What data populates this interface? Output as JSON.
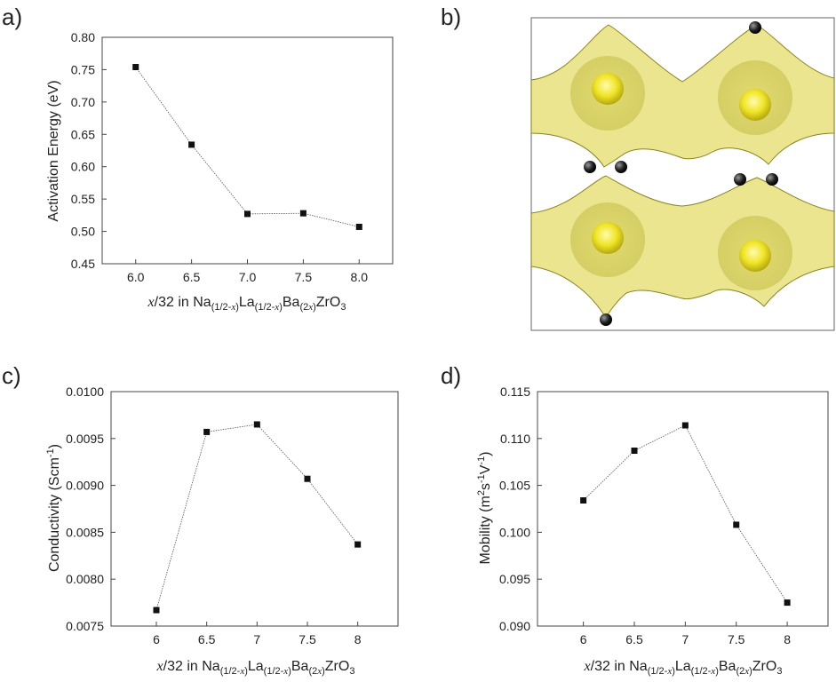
{
  "panels": [
    {
      "label": "a)"
    },
    {
      "label": "b)"
    },
    {
      "label": "c)"
    },
    {
      "label": "d)"
    }
  ],
  "xlabel_parts": {
    "var": "x",
    "frac": "/32 in Na",
    "sub1": "(1/2-",
    "subvar": "x",
    "close": ")",
    "la": "La",
    "ba": "Ba",
    "sub3": "(2",
    "zr": "ZrO",
    "o3": "3"
  },
  "chart_data": [
    {
      "type": "line",
      "panel": "a)",
      "ylabel": "Activation Energy (eV)",
      "x": [
        6.0,
        6.5,
        7.0,
        7.5,
        8.0
      ],
      "y": [
        0.754,
        0.634,
        0.527,
        0.528,
        0.507
      ],
      "xticks": [
        "6.0",
        "6.5",
        "7.0",
        "7.5",
        "8.0"
      ],
      "yticks": [
        "0.45",
        "0.50",
        "0.55",
        "0.60",
        "0.65",
        "0.70",
        "0.75",
        "0.80"
      ],
      "xlim": [
        5.7,
        8.3
      ],
      "ylim": [
        0.45,
        0.8
      ]
    },
    {
      "type": "line",
      "panel": "c)",
      "ylabel_base": "Conductivity (Scm",
      "ylabel_sup": "-1",
      "ylabel_end": ")",
      "x": [
        6,
        6.5,
        7,
        7.5,
        8
      ],
      "y": [
        0.00767,
        0.00957,
        0.00965,
        0.00907,
        0.00837
      ],
      "xticks": [
        "6",
        "6.5",
        "7",
        "7.5",
        "8"
      ],
      "yticks": [
        "0.0075",
        "0.0080",
        "0.0085",
        "0.0090",
        "0.0095",
        "0.0100"
      ],
      "xlim": [
        5.55,
        8.4
      ],
      "ylim": [
        0.0075,
        0.01
      ]
    },
    {
      "type": "line",
      "panel": "d)",
      "ylabel_base": "Mobility (m",
      "ylabel_sup1": "2",
      "ylabel_mid1": "s",
      "ylabel_sup2": "-1",
      "ylabel_mid2": "V",
      "ylabel_sup3": "-1",
      "ylabel_end": ")",
      "x": [
        6,
        6.5,
        7,
        7.5,
        8
      ],
      "y": [
        0.1034,
        0.1087,
        0.1114,
        0.1008,
        0.0925
      ],
      "xticks": [
        "6",
        "6.5",
        "7",
        "7.5",
        "8"
      ],
      "yticks": [
        "0.090",
        "0.095",
        "0.100",
        "0.105",
        "0.110",
        "0.115"
      ],
      "xlim": [
        5.55,
        8.4
      ],
      "ylim": [
        0.09,
        0.115
      ]
    }
  ],
  "image_b": {
    "kind": "isosurface-rendering",
    "colors": {
      "surface": "#e9e47a",
      "surface_dark": "#b9b23a",
      "hole": "#f4ee3c",
      "atom": "#111111"
    }
  }
}
